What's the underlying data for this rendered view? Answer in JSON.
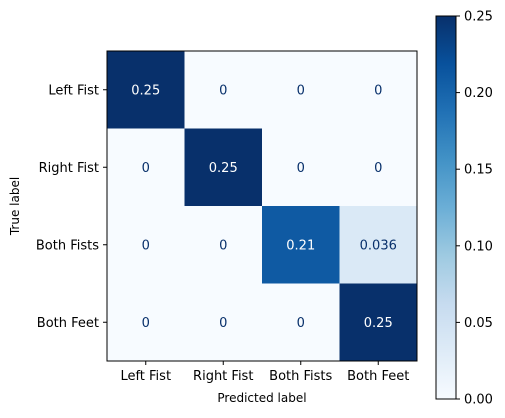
{
  "chart_data": {
    "type": "heatmap",
    "title": "",
    "xlabel": "Predicted label",
    "ylabel": "True label",
    "x_categories": [
      "Left Fist",
      "Right Fist",
      "Both Fists",
      "Both Feet"
    ],
    "y_categories": [
      "Left Fist",
      "Right Fist",
      "Both Fists",
      "Both Feet"
    ],
    "values": [
      [
        0.25,
        0,
        0,
        0
      ],
      [
        0,
        0.25,
        0,
        0
      ],
      [
        0,
        0,
        0.21,
        0.036
      ],
      [
        0,
        0,
        0,
        0.25
      ]
    ],
    "value_labels": [
      [
        "0.25",
        "0",
        "0",
        "0"
      ],
      [
        "0",
        "0.25",
        "0",
        "0"
      ],
      [
        "0",
        "0",
        "0.21",
        "0.036"
      ],
      [
        "0",
        "0",
        "0",
        "0.25"
      ]
    ],
    "colormap": "Blues",
    "colorbar": {
      "range": [
        0,
        0.25
      ],
      "ticks": [
        0,
        0.05,
        0.1,
        0.15,
        0.2,
        0.25
      ],
      "tick_labels": [
        "0.00",
        "0.05",
        "0.10",
        "0.15",
        "0.20",
        "0.25"
      ]
    },
    "grid": false
  }
}
